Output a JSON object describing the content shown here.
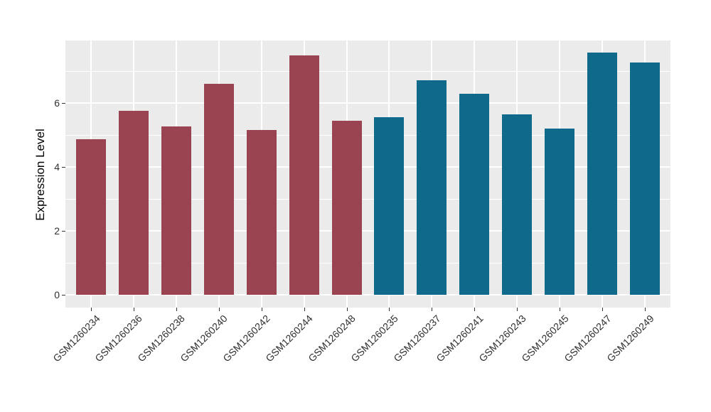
{
  "figure": {
    "background_color": "#FFFFFF",
    "panel_background_color": "#EBEBEB",
    "grid_color": "#FFFFFF",
    "tick_color": "#333333",
    "text_color": "#303030"
  },
  "chart_data": {
    "type": "bar",
    "title": "",
    "xlabel": "",
    "ylabel": "Expression Level",
    "categories": [
      "GSM1260234",
      "GSM1260236",
      "GSM1260238",
      "GSM1260240",
      "GSM1260242",
      "GSM1260244",
      "GSM1260248",
      "GSM1260235",
      "GSM1260237",
      "GSM1260241",
      "GSM1260243",
      "GSM1260245",
      "GSM1260247",
      "GSM1260249"
    ],
    "values": [
      4.87,
      5.75,
      5.26,
      6.59,
      5.16,
      7.48,
      5.44,
      5.56,
      6.72,
      6.3,
      5.65,
      5.19,
      7.57,
      7.27
    ],
    "bar_colors": [
      "#9A4452",
      "#9A4452",
      "#9A4452",
      "#9A4452",
      "#9A4452",
      "#9A4452",
      "#9A4452",
      "#0E698A",
      "#0E698A",
      "#0E698A",
      "#0E698A",
      "#0E698A",
      "#0E698A",
      "#0E698A"
    ],
    "groups": [
      {
        "name": "maroon-group",
        "color": "#9A4452",
        "categories": [
          "GSM1260234",
          "GSM1260236",
          "GSM1260238",
          "GSM1260240",
          "GSM1260242",
          "GSM1260244",
          "GSM1260248"
        ]
      },
      {
        "name": "teal-group",
        "color": "#0E698A",
        "categories": [
          "GSM1260235",
          "GSM1260237",
          "GSM1260241",
          "GSM1260243",
          "GSM1260245",
          "GSM1260247",
          "GSM1260249"
        ]
      }
    ],
    "yticks": [
      0,
      2,
      4,
      6
    ],
    "minor_yticks": [
      1,
      3,
      5,
      7
    ],
    "ylim": [
      0,
      8
    ],
    "x_tick_rotation_deg": 45,
    "grid": true,
    "legend": false
  }
}
